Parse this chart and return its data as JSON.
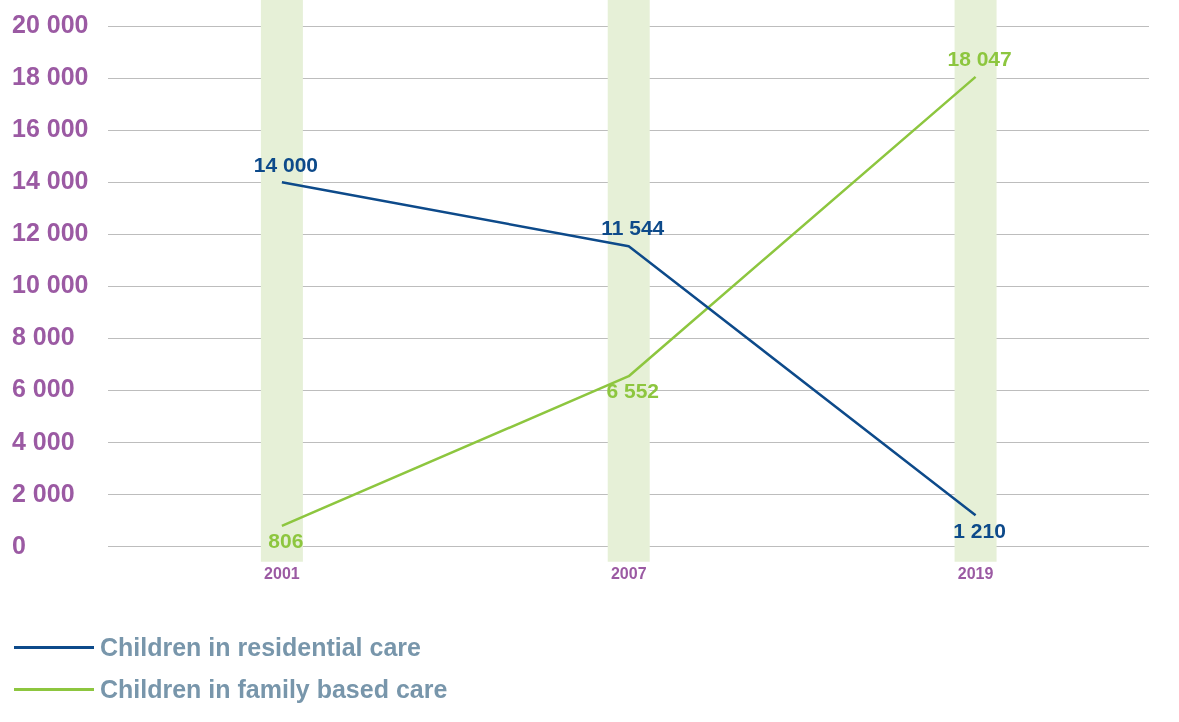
{
  "chart_data": {
    "type": "line",
    "categories": [
      "2001",
      "2007",
      "2019"
    ],
    "series": [
      {
        "name": "Children in residential care",
        "color": "#0d4a8a",
        "values": [
          14000,
          11544,
          1210
        ],
        "value_labels": [
          "14 000",
          "11 544",
          "1 210"
        ]
      },
      {
        "name": "Children in family based care",
        "color": "#8dc63f",
        "values": [
          806,
          6552,
          18047
        ],
        "value_labels": [
          "806",
          "6 552",
          "18 047"
        ]
      }
    ],
    "ylim": [
      0,
      20000
    ],
    "yticks": [
      {
        "value": 0,
        "label": "0"
      },
      {
        "value": 2000,
        "label": "2 000"
      },
      {
        "value": 4000,
        "label": "4 000"
      },
      {
        "value": 6000,
        "label": "6 000"
      },
      {
        "value": 8000,
        "label": "8 000"
      },
      {
        "value": 10000,
        "label": "10 000"
      },
      {
        "value": 12000,
        "label": "12 000"
      },
      {
        "value": 14000,
        "label": "14 000"
      },
      {
        "value": 16000,
        "label": "16 000"
      },
      {
        "value": 18000,
        "label": "18 000"
      },
      {
        "value": 20000,
        "label": "20 000"
      }
    ],
    "bands": [
      {
        "axis": "x",
        "from": "2001",
        "to": "2001",
        "color": "#e6f0d7"
      },
      {
        "axis": "x",
        "from": "2007",
        "to": "2007",
        "color": "#e6f0d7"
      },
      {
        "axis": "x",
        "from": "2019",
        "to": "2019",
        "color": "#e6f0d7"
      }
    ],
    "grid": "y",
    "legend": "bottom",
    "marker": "none",
    "line_style": "solid"
  }
}
